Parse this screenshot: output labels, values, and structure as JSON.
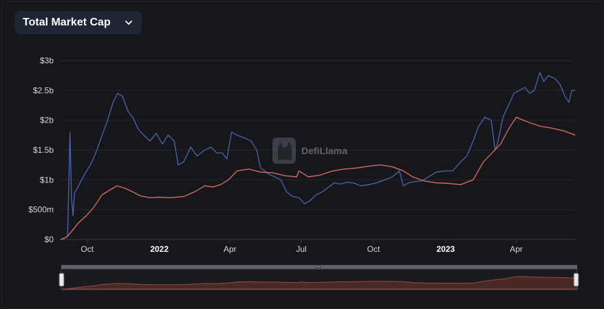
{
  "header": {
    "metric_label": "Total Market Cap"
  },
  "watermark": {
    "text": "DefiLlama",
    "icon": "llama-logo-icon"
  },
  "colors": {
    "background": "#16171b",
    "grid": "#25272d",
    "series_blue": "#4a5fa8",
    "series_red": "#d9675c",
    "selector_bg": "#1e2533"
  },
  "chart_data": {
    "type": "line",
    "title": "",
    "xlabel": "",
    "ylabel": "",
    "ylim": [
      0,
      3000000000
    ],
    "y_ticks": [
      {
        "value": 0,
        "label": "$0"
      },
      {
        "value": 500000000,
        "label": "$500m"
      },
      {
        "value": 1000000000,
        "label": "$1b"
      },
      {
        "value": 1500000000,
        "label": "$1.5b"
      },
      {
        "value": 2000000000,
        "label": "$2b"
      },
      {
        "value": 2500000000,
        "label": "$2.5b"
      },
      {
        "value": 3000000000,
        "label": "$3b"
      }
    ],
    "xlim": [
      "2021-08-28",
      "2023-06-15"
    ],
    "x_ticks": [
      {
        "date": "2021-10-01",
        "label": "Oct",
        "bold": false
      },
      {
        "date": "2022-01-01",
        "label": "2022",
        "bold": true
      },
      {
        "date": "2022-04-01",
        "label": "Apr",
        "bold": false
      },
      {
        "date": "2022-07-01",
        "label": "Jul",
        "bold": false
      },
      {
        "date": "2022-10-01",
        "label": "Oct",
        "bold": false
      },
      {
        "date": "2023-01-01",
        "label": "2023",
        "bold": true
      },
      {
        "date": "2023-04-01",
        "label": "Apr",
        "bold": false
      }
    ],
    "grid": true,
    "series": [
      {
        "color": "#4a5fa8",
        "points": [
          [
            "2021-08-28",
            0
          ],
          [
            "2021-09-01",
            10000000
          ],
          [
            "2021-09-06",
            60000000
          ],
          [
            "2021-09-09",
            1800000000
          ],
          [
            "2021-09-11",
            700000000
          ],
          [
            "2021-09-13",
            400000000
          ],
          [
            "2021-09-15",
            780000000
          ],
          [
            "2021-09-20",
            900000000
          ],
          [
            "2021-09-28",
            1100000000
          ],
          [
            "2021-10-05",
            1250000000
          ],
          [
            "2021-10-12",
            1450000000
          ],
          [
            "2021-10-20",
            1750000000
          ],
          [
            "2021-10-27",
            2000000000
          ],
          [
            "2021-11-03",
            2300000000
          ],
          [
            "2021-11-09",
            2450000000
          ],
          [
            "2021-11-15",
            2400000000
          ],
          [
            "2021-11-22",
            2150000000
          ],
          [
            "2021-11-28",
            2050000000
          ],
          [
            "2021-12-05",
            1850000000
          ],
          [
            "2021-12-12",
            1750000000
          ],
          [
            "2021-12-20",
            1650000000
          ],
          [
            "2021-12-28",
            1780000000
          ],
          [
            "2022-01-05",
            1600000000
          ],
          [
            "2022-01-12",
            1750000000
          ],
          [
            "2022-01-20",
            1650000000
          ],
          [
            "2022-01-25",
            1250000000
          ],
          [
            "2022-02-01",
            1300000000
          ],
          [
            "2022-02-10",
            1550000000
          ],
          [
            "2022-02-18",
            1400000000
          ],
          [
            "2022-02-28",
            1500000000
          ],
          [
            "2022-03-08",
            1550000000
          ],
          [
            "2022-03-15",
            1450000000
          ],
          [
            "2022-03-22",
            1450000000
          ],
          [
            "2022-03-28",
            1350000000
          ],
          [
            "2022-04-03",
            1800000000
          ],
          [
            "2022-04-10",
            1750000000
          ],
          [
            "2022-04-20",
            1700000000
          ],
          [
            "2022-04-28",
            1650000000
          ],
          [
            "2022-05-05",
            1500000000
          ],
          [
            "2022-05-10",
            1200000000
          ],
          [
            "2022-05-20",
            1100000000
          ],
          [
            "2022-05-28",
            1050000000
          ],
          [
            "2022-06-05",
            1000000000
          ],
          [
            "2022-06-12",
            800000000
          ],
          [
            "2022-06-20",
            720000000
          ],
          [
            "2022-06-28",
            700000000
          ],
          [
            "2022-07-05",
            600000000
          ],
          [
            "2022-07-12",
            650000000
          ],
          [
            "2022-07-20",
            750000000
          ],
          [
            "2022-07-28",
            800000000
          ],
          [
            "2022-08-05",
            880000000
          ],
          [
            "2022-08-12",
            950000000
          ],
          [
            "2022-08-20",
            930000000
          ],
          [
            "2022-08-28",
            960000000
          ],
          [
            "2022-09-05",
            950000000
          ],
          [
            "2022-09-15",
            900000000
          ],
          [
            "2022-09-25",
            920000000
          ],
          [
            "2022-10-05",
            950000000
          ],
          [
            "2022-10-15",
            1000000000
          ],
          [
            "2022-10-25",
            1050000000
          ],
          [
            "2022-11-03",
            1150000000
          ],
          [
            "2022-11-08",
            900000000
          ],
          [
            "2022-11-15",
            950000000
          ],
          [
            "2022-11-22",
            970000000
          ],
          [
            "2022-12-01",
            980000000
          ],
          [
            "2022-12-10",
            1050000000
          ],
          [
            "2022-12-20",
            1130000000
          ],
          [
            "2023-01-01",
            1150000000
          ],
          [
            "2023-01-10",
            1150000000
          ],
          [
            "2023-01-20",
            1300000000
          ],
          [
            "2023-01-28",
            1400000000
          ],
          [
            "2023-02-05",
            1650000000
          ],
          [
            "2023-02-12",
            1900000000
          ],
          [
            "2023-02-20",
            2050000000
          ],
          [
            "2023-02-28",
            2000000000
          ],
          [
            "2023-03-05",
            1500000000
          ],
          [
            "2023-03-08",
            1600000000
          ],
          [
            "2023-03-15",
            2050000000
          ],
          [
            "2023-03-22",
            2250000000
          ],
          [
            "2023-03-29",
            2450000000
          ],
          [
            "2023-04-05",
            2500000000
          ],
          [
            "2023-04-12",
            2550000000
          ],
          [
            "2023-04-18",
            2450000000
          ],
          [
            "2023-04-24",
            2500000000
          ],
          [
            "2023-05-01",
            2800000000
          ],
          [
            "2023-05-06",
            2650000000
          ],
          [
            "2023-05-12",
            2750000000
          ],
          [
            "2023-05-20",
            2700000000
          ],
          [
            "2023-05-27",
            2600000000
          ],
          [
            "2023-06-02",
            2400000000
          ],
          [
            "2023-06-07",
            2300000000
          ],
          [
            "2023-06-11",
            2500000000
          ],
          [
            "2023-06-15",
            2500000000
          ]
        ]
      },
      {
        "color": "#d9675c",
        "points": [
          [
            "2021-08-28",
            0
          ],
          [
            "2021-09-05",
            40000000
          ],
          [
            "2021-09-12",
            150000000
          ],
          [
            "2021-09-20",
            280000000
          ],
          [
            "2021-09-30",
            400000000
          ],
          [
            "2021-10-10",
            550000000
          ],
          [
            "2021-10-20",
            750000000
          ],
          [
            "2021-10-30",
            830000000
          ],
          [
            "2021-11-08",
            900000000
          ],
          [
            "2021-11-18",
            860000000
          ],
          [
            "2021-11-28",
            800000000
          ],
          [
            "2021-12-08",
            730000000
          ],
          [
            "2021-12-20",
            700000000
          ],
          [
            "2022-01-01",
            710000000
          ],
          [
            "2022-01-15",
            700000000
          ],
          [
            "2022-02-01",
            720000000
          ],
          [
            "2022-02-15",
            800000000
          ],
          [
            "2022-02-28",
            900000000
          ],
          [
            "2022-03-10",
            880000000
          ],
          [
            "2022-03-20",
            920000000
          ],
          [
            "2022-03-30",
            1000000000
          ],
          [
            "2022-04-10",
            1150000000
          ],
          [
            "2022-04-25",
            1180000000
          ],
          [
            "2022-05-10",
            1130000000
          ],
          [
            "2022-05-25",
            1120000000
          ],
          [
            "2022-06-10",
            1070000000
          ],
          [
            "2022-06-25",
            1050000000
          ],
          [
            "2022-06-28",
            1150000000
          ],
          [
            "2022-07-10",
            1050000000
          ],
          [
            "2022-07-25",
            1080000000
          ],
          [
            "2022-08-10",
            1150000000
          ],
          [
            "2022-08-25",
            1180000000
          ],
          [
            "2022-09-10",
            1200000000
          ],
          [
            "2022-09-25",
            1230000000
          ],
          [
            "2022-10-10",
            1250000000
          ],
          [
            "2022-10-25",
            1220000000
          ],
          [
            "2022-11-08",
            1150000000
          ],
          [
            "2022-11-20",
            1050000000
          ],
          [
            "2022-12-05",
            980000000
          ],
          [
            "2022-12-20",
            950000000
          ],
          [
            "2023-01-05",
            940000000
          ],
          [
            "2023-01-20",
            920000000
          ],
          [
            "2023-02-05",
            1000000000
          ],
          [
            "2023-02-18",
            1300000000
          ],
          [
            "2023-03-01",
            1450000000
          ],
          [
            "2023-03-12",
            1600000000
          ],
          [
            "2023-03-22",
            1850000000
          ],
          [
            "2023-04-01",
            2050000000
          ],
          [
            "2023-04-10",
            2000000000
          ],
          [
            "2023-04-20",
            1950000000
          ],
          [
            "2023-05-01",
            1900000000
          ],
          [
            "2023-05-15",
            1870000000
          ],
          [
            "2023-06-01",
            1820000000
          ],
          [
            "2023-06-15",
            1750000000
          ]
        ]
      }
    ]
  }
}
